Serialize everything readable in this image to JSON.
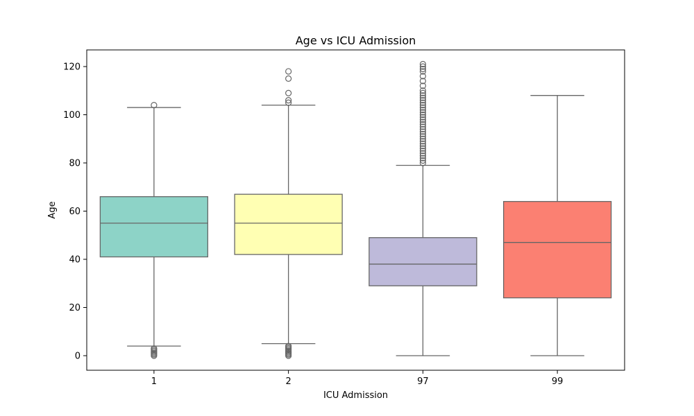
{
  "chart_data": {
    "type": "box",
    "title": "Age vs ICU Admission",
    "xlabel": "ICU Admission",
    "ylabel": "Age",
    "ylim": [
      -6,
      127
    ],
    "yticks": [
      0,
      20,
      40,
      60,
      80,
      100,
      120
    ],
    "grid": false,
    "categories": [
      "1",
      "2",
      "97",
      "99"
    ],
    "colors": [
      "#8dd3c7",
      "#ffffb3",
      "#bebada",
      "#fb8072"
    ],
    "boxes": [
      {
        "category": "1",
        "whisker_low": 4,
        "q1": 41,
        "median": 55,
        "q3": 66,
        "whisker_high": 103,
        "outliers": [
          0,
          0.5,
          1,
          1.5,
          2,
          2.5,
          3,
          104
        ]
      },
      {
        "category": "2",
        "whisker_low": 5,
        "q1": 42,
        "median": 55,
        "q3": 67,
        "whisker_high": 104,
        "outliers": [
          0,
          0.5,
          1,
          1.5,
          2,
          2.5,
          3,
          3.5,
          4,
          105,
          106,
          109,
          115,
          118
        ]
      },
      {
        "category": "97",
        "whisker_low": 0,
        "q1": 29,
        "median": 38,
        "q3": 49,
        "whisker_high": 79,
        "outliers": [
          80,
          81,
          82,
          83,
          84,
          85,
          86,
          87,
          88,
          89,
          90,
          91,
          92,
          93,
          94,
          95,
          96,
          97,
          98,
          99,
          100,
          101,
          102,
          103,
          104,
          105,
          106,
          107,
          108,
          109,
          110,
          112,
          114,
          116,
          118,
          119,
          120,
          121
        ]
      },
      {
        "category": "99",
        "whisker_low": 0,
        "q1": 24,
        "median": 47,
        "q3": 64,
        "whisker_high": 108,
        "outliers": []
      }
    ]
  }
}
